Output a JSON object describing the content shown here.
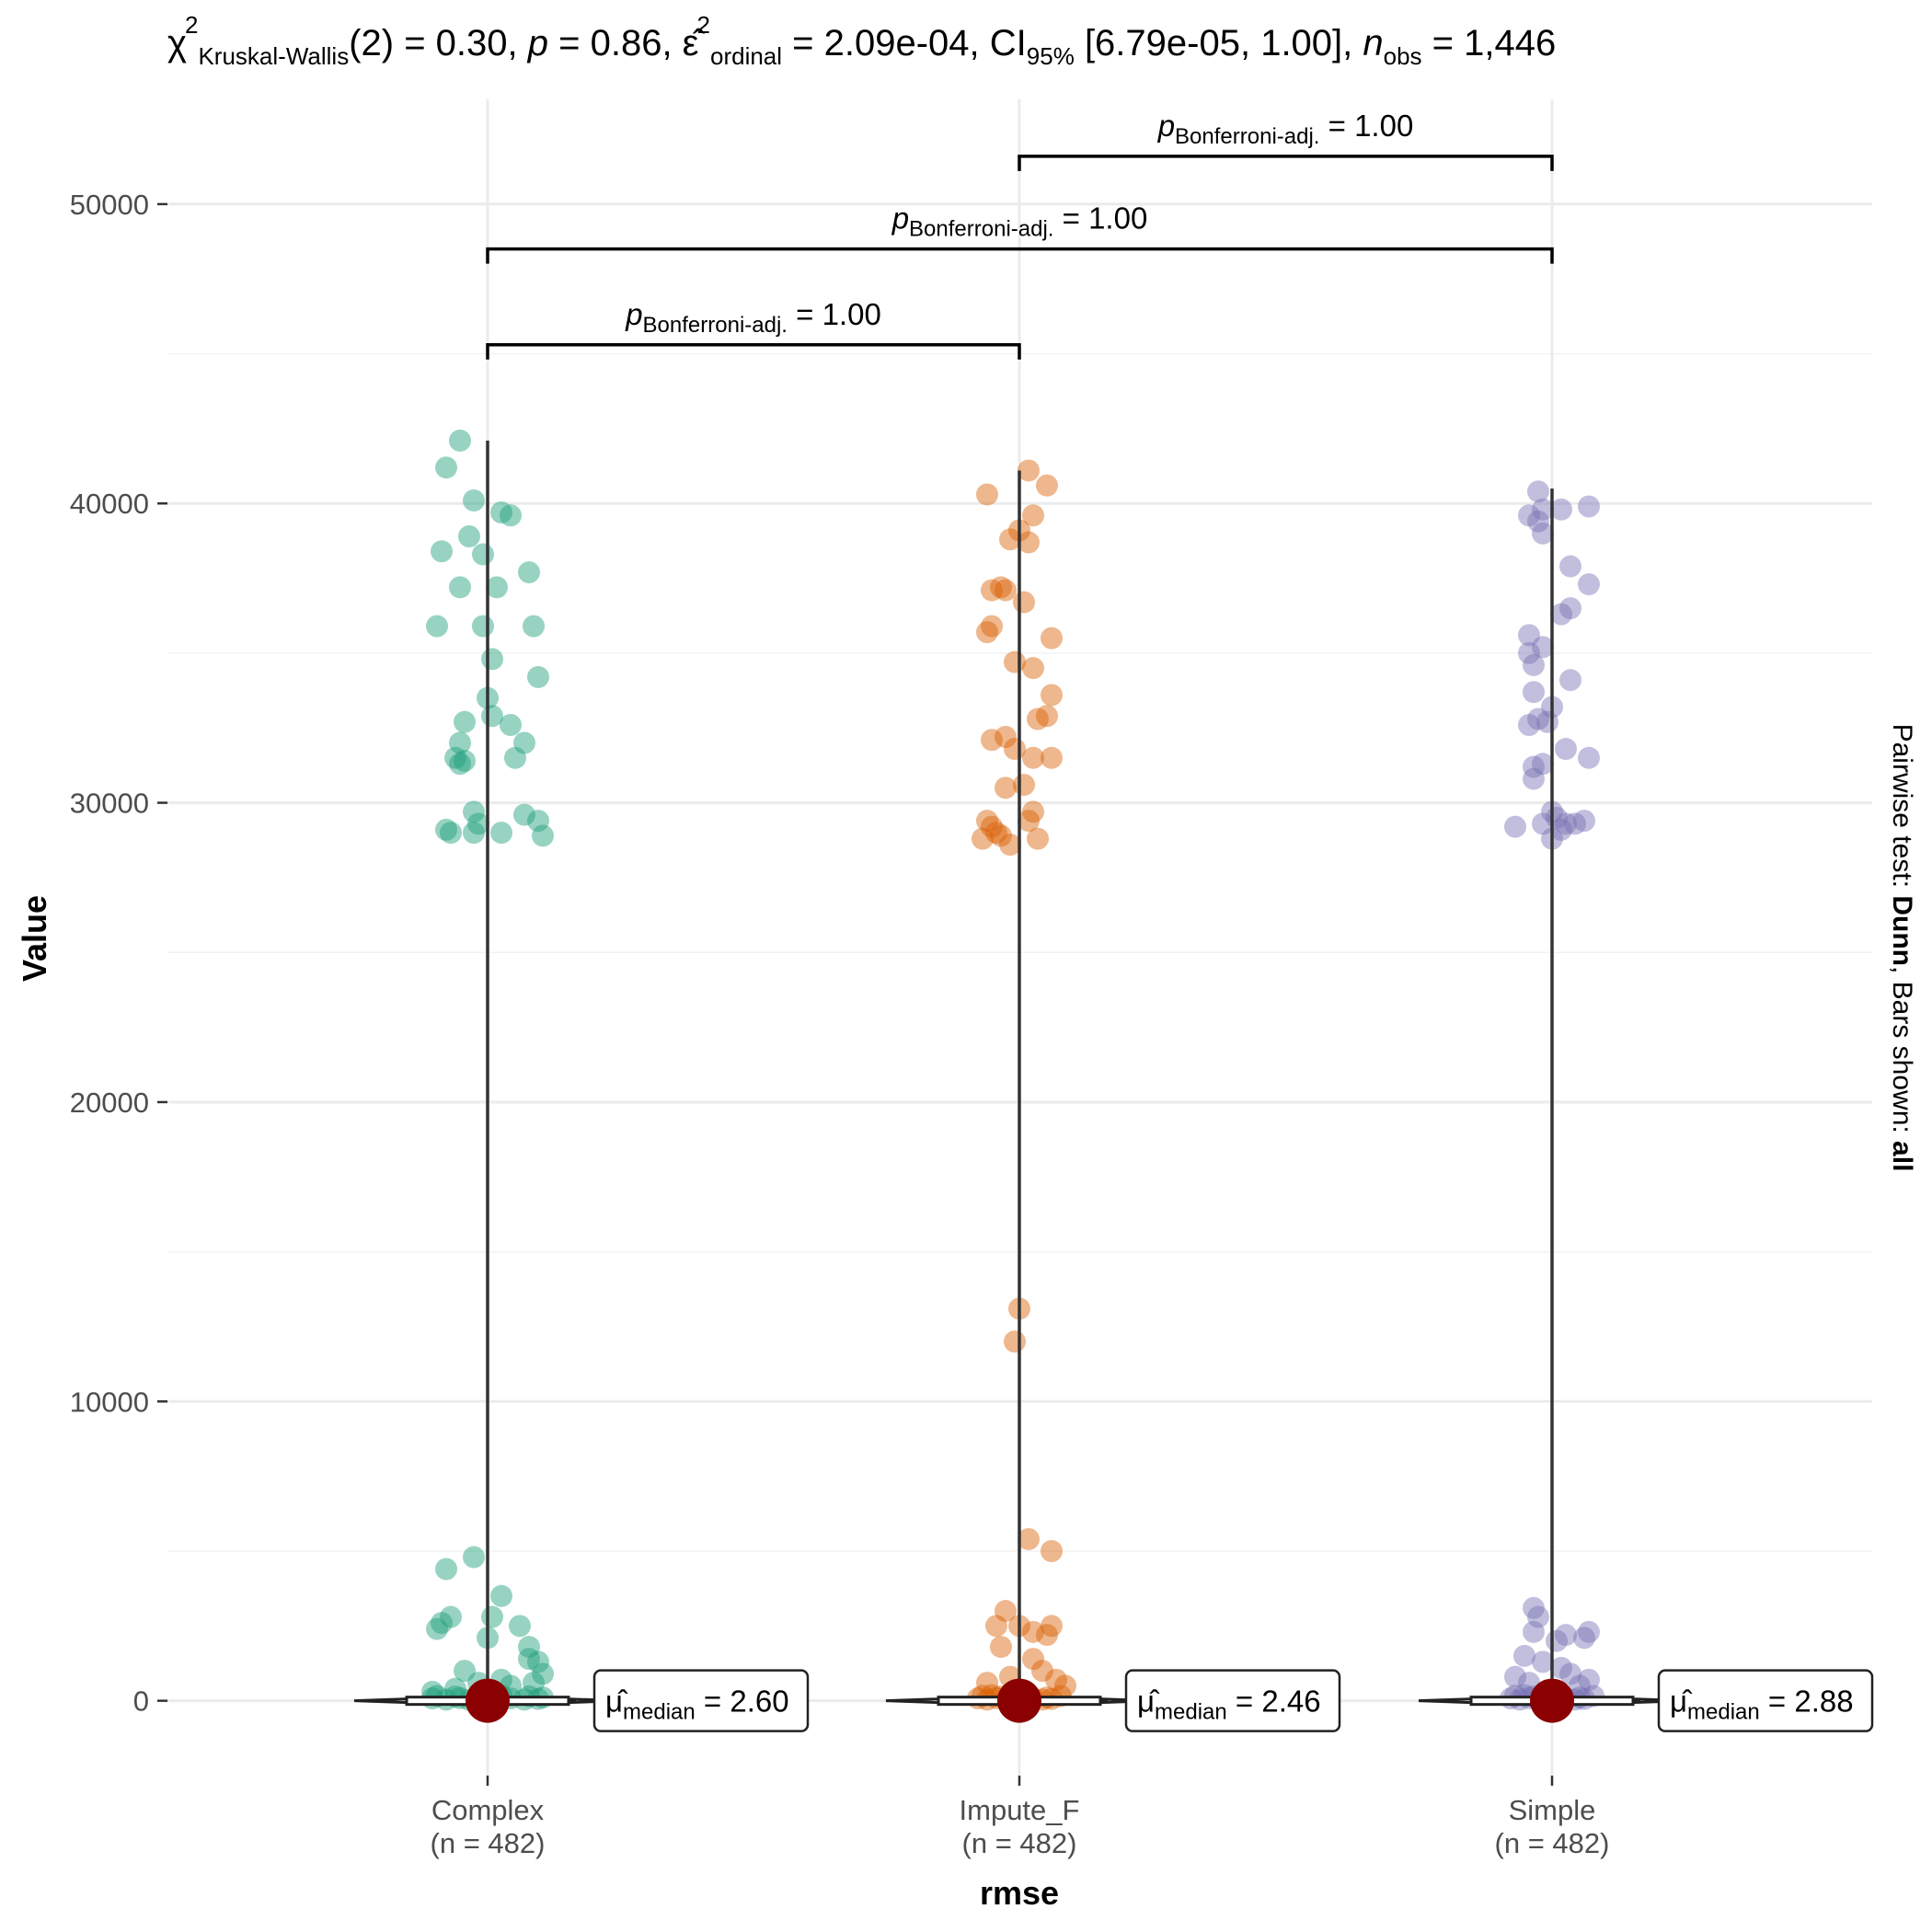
{
  "chart_data": {
    "type": "scatter",
    "subtitle_parts": [
      {
        "t": "χ",
        "pos": "normal"
      },
      {
        "t": "2",
        "pos": "sup"
      },
      {
        "t": "Kruskal-Wallis",
        "pos": "sub"
      },
      {
        "t": "(2) = 0.30, ",
        "pos": "normal"
      },
      {
        "t": "p",
        "pos": "italic"
      },
      {
        "t": " = 0.86, ",
        "pos": "normal"
      },
      {
        "t": "ε̂",
        "pos": "normal"
      },
      {
        "t": "2",
        "pos": "sup"
      },
      {
        "t": "ordinal",
        "pos": "sub"
      },
      {
        "t": " = 2.09e-04, CI",
        "pos": "normal"
      },
      {
        "t": "95%",
        "pos": "sub"
      },
      {
        "t": " [6.79e-05, 1.00], ",
        "pos": "normal"
      },
      {
        "t": "n",
        "pos": "italic"
      },
      {
        "t": "obs",
        "pos": "sub"
      },
      {
        "t": " = 1,446",
        "pos": "normal"
      }
    ],
    "xlabel": "rmse",
    "ylabel": "Value",
    "caption": {
      "prefix": "Pairwise test: ",
      "test": "Dunn",
      "mid": ", Bars shown: ",
      "bars": "all"
    },
    "ylim": [
      -2500,
      53500
    ],
    "yticks": [
      0,
      10000,
      20000,
      30000,
      40000,
      50000
    ],
    "ytick_labels": [
      "0",
      "10000",
      "20000",
      "30000",
      "40000",
      "50000"
    ],
    "grid": true,
    "categories": [
      "Complex",
      "Impute_F",
      "Simple"
    ],
    "category_n": [
      "(n = 482)",
      "(n = 482)",
      "(n = 482)"
    ],
    "colors": {
      "Complex": "#1b9e77",
      "Impute_F": "#d95f02",
      "Simple": "#7570b3",
      "median": "#8b0000"
    },
    "medians": [
      2.6,
      2.46,
      2.88
    ],
    "median_labels": [
      "= 2.60",
      "= 2.46",
      "= 2.88"
    ],
    "median_symbol": "μ̂",
    "median_sub": "median",
    "whisker_max": [
      42100,
      41100,
      40500
    ],
    "pairwise": [
      {
        "from": 0,
        "to": 1,
        "y": 45300,
        "p_label": "= 1.00",
        "p_symbol": "p",
        "p_sub": "Bonferroni-adj."
      },
      {
        "from": 0,
        "to": 2,
        "y": 48500,
        "p_label": "= 1.00",
        "p_symbol": "p",
        "p_sub": "Bonferroni-adj."
      },
      {
        "from": 1,
        "to": 2,
        "y": 51600,
        "p_label": "= 1.00",
        "p_symbol": "p",
        "p_sub": "Bonferroni-adj."
      }
    ],
    "series": [
      {
        "category": "Complex",
        "points": [
          [
            -0.06,
            42100
          ],
          [
            -0.09,
            41200
          ],
          [
            -0.03,
            40100
          ],
          [
            0.03,
            39700
          ],
          [
            0.05,
            39600
          ],
          [
            -0.04,
            38900
          ],
          [
            -0.1,
            38400
          ],
          [
            -0.01,
            38300
          ],
          [
            0.09,
            37700
          ],
          [
            -0.06,
            37200
          ],
          [
            0.02,
            37200
          ],
          [
            -0.11,
            35900
          ],
          [
            -0.01,
            35900
          ],
          [
            0.1,
            35900
          ],
          [
            0.01,
            34800
          ],
          [
            0.11,
            34200
          ],
          [
            0.0,
            33500
          ],
          [
            0.01,
            32900
          ],
          [
            -0.05,
            32700
          ],
          [
            0.05,
            32600
          ],
          [
            -0.06,
            32000
          ],
          [
            0.08,
            32000
          ],
          [
            -0.07,
            31500
          ],
          [
            -0.05,
            31400
          ],
          [
            -0.06,
            31300
          ],
          [
            0.06,
            31500
          ],
          [
            -0.03,
            29700
          ],
          [
            0.08,
            29600
          ],
          [
            0.11,
            29400
          ],
          [
            -0.02,
            29300
          ],
          [
            -0.09,
            29100
          ],
          [
            -0.08,
            29000
          ],
          [
            -0.03,
            29000
          ],
          [
            0.03,
            29000
          ],
          [
            0.12,
            28900
          ],
          [
            -0.09,
            4400
          ],
          [
            -0.03,
            4800
          ],
          [
            0.03,
            3500
          ],
          [
            -0.11,
            2400
          ],
          [
            -0.1,
            2600
          ],
          [
            -0.08,
            2800
          ],
          [
            0.01,
            2800
          ],
          [
            0.07,
            2500
          ],
          [
            0.0,
            2100
          ],
          [
            0.09,
            1800
          ],
          [
            0.09,
            1400
          ],
          [
            0.11,
            1300
          ],
          [
            -0.05,
            1000
          ],
          [
            0.03,
            700
          ],
          [
            0.12,
            900
          ],
          [
            0.1,
            600
          ],
          [
            0.05,
            500
          ],
          [
            -0.02,
            600
          ],
          [
            -0.07,
            400
          ],
          [
            -0.12,
            300
          ],
          [
            -0.12,
            80
          ],
          [
            -0.09,
            40
          ],
          [
            -0.06,
            90
          ],
          [
            -0.04,
            30
          ],
          [
            -0.01,
            70
          ],
          [
            0.02,
            50
          ],
          [
            0.05,
            80
          ],
          [
            0.08,
            40
          ],
          [
            0.11,
            60
          ],
          [
            -0.11,
            160
          ],
          [
            0.03,
            170
          ],
          [
            0.09,
            150
          ],
          [
            -0.07,
            140
          ],
          [
            0.12,
            110
          ],
          [
            -0.02,
            190
          ]
        ]
      },
      {
        "category": "Impute_F",
        "points": [
          [
            0.02,
            41100
          ],
          [
            0.06,
            40600
          ],
          [
            -0.07,
            40300
          ],
          [
            0.03,
            39600
          ],
          [
            0.0,
            39100
          ],
          [
            -0.02,
            38800
          ],
          [
            0.02,
            38700
          ],
          [
            -0.06,
            37100
          ],
          [
            -0.04,
            37200
          ],
          [
            -0.03,
            37100
          ],
          [
            0.01,
            36700
          ],
          [
            -0.07,
            35700
          ],
          [
            -0.06,
            35900
          ],
          [
            0.07,
            35500
          ],
          [
            -0.01,
            34700
          ],
          [
            0.03,
            34500
          ],
          [
            0.07,
            33600
          ],
          [
            -0.06,
            32100
          ],
          [
            -0.03,
            32200
          ],
          [
            -0.01,
            31800
          ],
          [
            0.04,
            32800
          ],
          [
            0.06,
            32900
          ],
          [
            0.03,
            31500
          ],
          [
            0.07,
            31500
          ],
          [
            -0.03,
            30500
          ],
          [
            0.01,
            30600
          ],
          [
            -0.07,
            29400
          ],
          [
            -0.06,
            29200
          ],
          [
            0.03,
            29700
          ],
          [
            0.02,
            29400
          ],
          [
            -0.05,
            29000
          ],
          [
            -0.04,
            28900
          ],
          [
            -0.08,
            28800
          ],
          [
            -0.02,
            28600
          ],
          [
            0.04,
            28800
          ],
          [
            0.0,
            13100
          ],
          [
            -0.01,
            12000
          ],
          [
            0.02,
            5400
          ],
          [
            0.07,
            5000
          ],
          [
            -0.03,
            3000
          ],
          [
            -0.05,
            2500
          ],
          [
            0.0,
            2500
          ],
          [
            0.03,
            2300
          ],
          [
            0.07,
            2500
          ],
          [
            0.06,
            2200
          ],
          [
            -0.04,
            1800
          ],
          [
            0.03,
            1400
          ],
          [
            0.05,
            1000
          ],
          [
            -0.02,
            800
          ],
          [
            0.08,
            700
          ],
          [
            -0.07,
            600
          ],
          [
            0.1,
            500
          ],
          [
            -0.09,
            80
          ],
          [
            -0.07,
            40
          ],
          [
            -0.05,
            90
          ],
          [
            -0.03,
            30
          ],
          [
            -0.01,
            70
          ],
          [
            0.01,
            50
          ],
          [
            0.03,
            80
          ],
          [
            0.05,
            40
          ],
          [
            0.07,
            60
          ],
          [
            0.09,
            160
          ],
          [
            -0.08,
            170
          ],
          [
            0.02,
            150
          ],
          [
            -0.04,
            140
          ],
          [
            0.06,
            110
          ],
          [
            -0.06,
            190
          ]
        ]
      },
      {
        "category": "Simple",
        "points": [
          [
            -0.03,
            40400
          ],
          [
            -0.05,
            39600
          ],
          [
            -0.03,
            39400
          ],
          [
            -0.02,
            39800
          ],
          [
            0.02,
            39800
          ],
          [
            0.08,
            39900
          ],
          [
            -0.02,
            39000
          ],
          [
            0.04,
            37900
          ],
          [
            0.08,
            37300
          ],
          [
            0.02,
            36300
          ],
          [
            0.04,
            36500
          ],
          [
            -0.05,
            35600
          ],
          [
            -0.05,
            35000
          ],
          [
            -0.02,
            35200
          ],
          [
            -0.04,
            34600
          ],
          [
            0.04,
            34100
          ],
          [
            -0.04,
            33700
          ],
          [
            0.0,
            33200
          ],
          [
            -0.05,
            32600
          ],
          [
            -0.03,
            32800
          ],
          [
            -0.01,
            32700
          ],
          [
            0.03,
            31800
          ],
          [
            0.08,
            31500
          ],
          [
            -0.04,
            31200
          ],
          [
            -0.02,
            31300
          ],
          [
            -0.04,
            30800
          ],
          [
            0.0,
            29700
          ],
          [
            0.01,
            29500
          ],
          [
            -0.08,
            29200
          ],
          [
            -0.02,
            29300
          ],
          [
            0.03,
            29300
          ],
          [
            0.07,
            29400
          ],
          [
            0.02,
            29100
          ],
          [
            0.05,
            29300
          ],
          [
            0.0,
            28800
          ],
          [
            -0.04,
            3100
          ],
          [
            -0.03,
            2800
          ],
          [
            -0.04,
            2300
          ],
          [
            0.03,
            2200
          ],
          [
            0.01,
            2000
          ],
          [
            0.08,
            2300
          ],
          [
            0.07,
            2100
          ],
          [
            -0.06,
            1500
          ],
          [
            -0.02,
            1300
          ],
          [
            0.02,
            1100
          ],
          [
            0.04,
            900
          ],
          [
            -0.08,
            800
          ],
          [
            0.08,
            700
          ],
          [
            -0.05,
            600
          ],
          [
            0.06,
            500
          ],
          [
            -0.09,
            80
          ],
          [
            -0.07,
            40
          ],
          [
            -0.05,
            90
          ],
          [
            -0.03,
            30
          ],
          [
            -0.01,
            70
          ],
          [
            0.01,
            50
          ],
          [
            0.03,
            80
          ],
          [
            0.05,
            40
          ],
          [
            0.07,
            60
          ],
          [
            0.09,
            160
          ],
          [
            -0.08,
            170
          ],
          [
            0.02,
            150
          ],
          [
            -0.04,
            140
          ],
          [
            0.06,
            110
          ],
          [
            -0.06,
            190
          ]
        ]
      }
    ]
  }
}
